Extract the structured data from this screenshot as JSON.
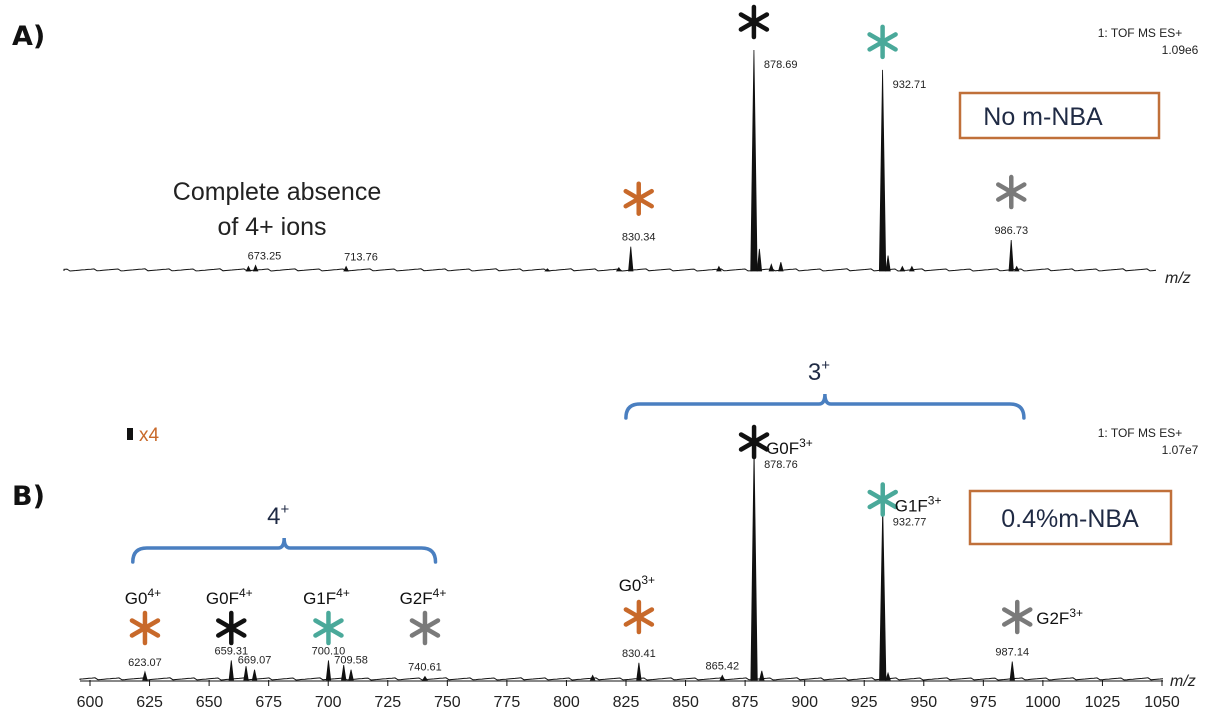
{
  "colors": {
    "orange": "#c8692a",
    "black": "#111111",
    "teal": "#4aa99a",
    "gray": "#7a7a7a",
    "blue": "#4a7fc0",
    "box": "#c0703a",
    "navy": "#1f2a44"
  },
  "chart_data": [
    {
      "panel": "A)",
      "type": "line",
      "instrument": "1: TOF MS ES+",
      "max_intensity": "1.09e6",
      "xlabel": "m/z",
      "xlim": [
        600,
        1060
      ],
      "box_label": "No m-NBA",
      "annotation_lines": [
        "Complete absence",
        "of 4+ ions"
      ],
      "peaks": [
        {
          "mz": 666.5,
          "rel": 0.02
        },
        {
          "mz": 669.5,
          "rel": 0.025
        },
        {
          "mz": 707.5,
          "rel": 0.02
        },
        {
          "mz": 792.0,
          "rel": 0.01
        },
        {
          "mz": 822.0,
          "rel": 0.015
        },
        {
          "mz": 827.0,
          "rel": 0.11
        },
        {
          "mz": 864.0,
          "rel": 0.02
        },
        {
          "mz": 878.7,
          "rel": 1.0
        },
        {
          "mz": 881.0,
          "rel": 0.1
        },
        {
          "mz": 886.0,
          "rel": 0.03
        },
        {
          "mz": 890.0,
          "rel": 0.04
        },
        {
          "mz": 932.7,
          "rel": 0.91
        },
        {
          "mz": 935.0,
          "rel": 0.07
        },
        {
          "mz": 941.0,
          "rel": 0.02
        },
        {
          "mz": 945.0,
          "rel": 0.02
        },
        {
          "mz": 986.7,
          "rel": 0.14
        },
        {
          "mz": 989.0,
          "rel": 0.02
        }
      ],
      "peak_labels": [
        "673.25",
        "713.76",
        "830.34",
        "878.69",
        "932.71",
        "986.73"
      ],
      "markers": [
        {
          "mz": 830.34,
          "color": "orange",
          "label": "830.34"
        },
        {
          "mz": 878.69,
          "color": "black",
          "label": "878.69"
        },
        {
          "mz": 932.71,
          "color": "teal",
          "label": "932.71"
        },
        {
          "mz": 986.73,
          "color": "gray",
          "label": "986.73"
        }
      ]
    },
    {
      "panel": "B)",
      "type": "line",
      "instrument": "1: TOF MS ES+",
      "max_intensity": "1.07e7",
      "xlabel": "m/z",
      "xlim": [
        600,
        1060
      ],
      "x_ticks": [
        600,
        625,
        650,
        675,
        700,
        725,
        750,
        775,
        800,
        825,
        850,
        875,
        900,
        925,
        950,
        975,
        1000,
        1025,
        1050
      ],
      "zoom_label": "x4",
      "box_label": "0.4%m-NBA",
      "charge_groups": [
        {
          "label": "4",
          "sup": "+",
          "from": 623,
          "to": 740
        },
        {
          "label": "3",
          "sup": "+",
          "from": 830,
          "to": 987
        }
      ],
      "peaks": [
        {
          "mz": 623.07,
          "rel": 0.035
        },
        {
          "mz": 659.31,
          "rel": 0.085
        },
        {
          "mz": 665.5,
          "rel": 0.06
        },
        {
          "mz": 669.07,
          "rel": 0.045
        },
        {
          "mz": 700.1,
          "rel": 0.085
        },
        {
          "mz": 706.5,
          "rel": 0.065
        },
        {
          "mz": 709.58,
          "rel": 0.045
        },
        {
          "mz": 740.61,
          "rel": 0.015
        },
        {
          "mz": 811.0,
          "rel": 0.02
        },
        {
          "mz": 830.41,
          "rel": 0.075
        },
        {
          "mz": 865.42,
          "rel": 0.02
        },
        {
          "mz": 878.76,
          "rel": 1.0
        },
        {
          "mz": 882.0,
          "rel": 0.04
        },
        {
          "mz": 932.77,
          "rel": 0.75
        },
        {
          "mz": 935.0,
          "rel": 0.03
        },
        {
          "mz": 987.14,
          "rel": 0.08
        }
      ],
      "peak_labels": [
        "623.07",
        "659.31",
        "669.07",
        "700.10",
        "709.58",
        "740.61",
        "830.41",
        "865.42",
        "878.76",
        "932.77",
        "987.14"
      ],
      "markers": [
        {
          "mz": 623.07,
          "color": "orange",
          "glycan": "G0",
          "charge": "4+"
        },
        {
          "mz": 659.31,
          "color": "black",
          "glycan": "G0F",
          "charge": "4+"
        },
        {
          "mz": 700.1,
          "color": "teal",
          "glycan": "G1F",
          "charge": "4+"
        },
        {
          "mz": 740.61,
          "color": "gray",
          "glycan": "G2F",
          "charge": "4+"
        },
        {
          "mz": 830.41,
          "color": "orange",
          "glycan": "G0",
          "charge": "3+"
        },
        {
          "mz": 878.76,
          "color": "black",
          "glycan": "G0F",
          "charge": "3+"
        },
        {
          "mz": 932.77,
          "color": "teal",
          "glycan": "G1F",
          "charge": "3+"
        },
        {
          "mz": 987.14,
          "color": "gray",
          "glycan": "G2F",
          "charge": "3+"
        }
      ]
    }
  ]
}
